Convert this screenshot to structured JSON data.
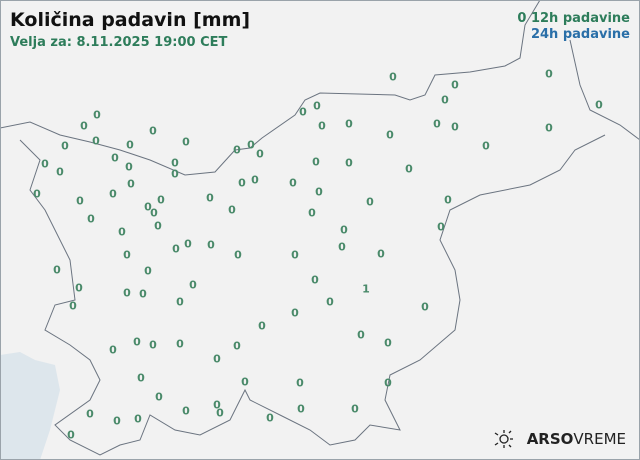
{
  "header": {
    "title": "Količina padavin [mm]",
    "valid_for": "Velja za: 8.11.2025 19:00 CET"
  },
  "legend": {
    "sample_value": "0",
    "label_12h": "12h padavine",
    "label_24h": "24h padavine",
    "color_12h": "#2e7d5b",
    "color_24h": "#2a6fa8"
  },
  "stations": {
    "values": [
      "0",
      "0",
      "0",
      "0",
      "0",
      "0",
      "0",
      "0",
      "0",
      "0",
      "0",
      "0",
      "0",
      "0",
      "0",
      "0",
      "0",
      "0",
      "0",
      "0",
      "0",
      "0",
      "0",
      "0",
      "0",
      "0",
      "0",
      "0",
      "0",
      "0",
      "0",
      "0",
      "0",
      "0",
      "0",
      "0",
      "0",
      "0",
      "0",
      "0",
      "0",
      "0",
      "0",
      "0",
      "0",
      "0",
      "0",
      "0",
      "0",
      "0",
      "0",
      "0",
      "0",
      "0",
      "0",
      "0",
      "0",
      "0",
      "0",
      "0",
      "0",
      "0",
      "0",
      "0",
      "0",
      "0",
      "0",
      "0",
      "0",
      "1",
      "0",
      "0",
      "0",
      "0",
      "0",
      "0",
      "0",
      "0",
      "0",
      "0",
      "0",
      "0",
      "0",
      "0",
      "0",
      "0",
      "0",
      "0",
      "0",
      "0",
      "0",
      "0",
      "0",
      "0",
      "0",
      "0",
      "0",
      "0",
      "0",
      "0"
    ]
  },
  "logo": {
    "brand": "ARSO",
    "product": "VREME",
    "icon": "sun-icon"
  },
  "colors": {
    "land": "#f2f2f2",
    "sea": "#dde6ec",
    "border": "#6b7480"
  }
}
